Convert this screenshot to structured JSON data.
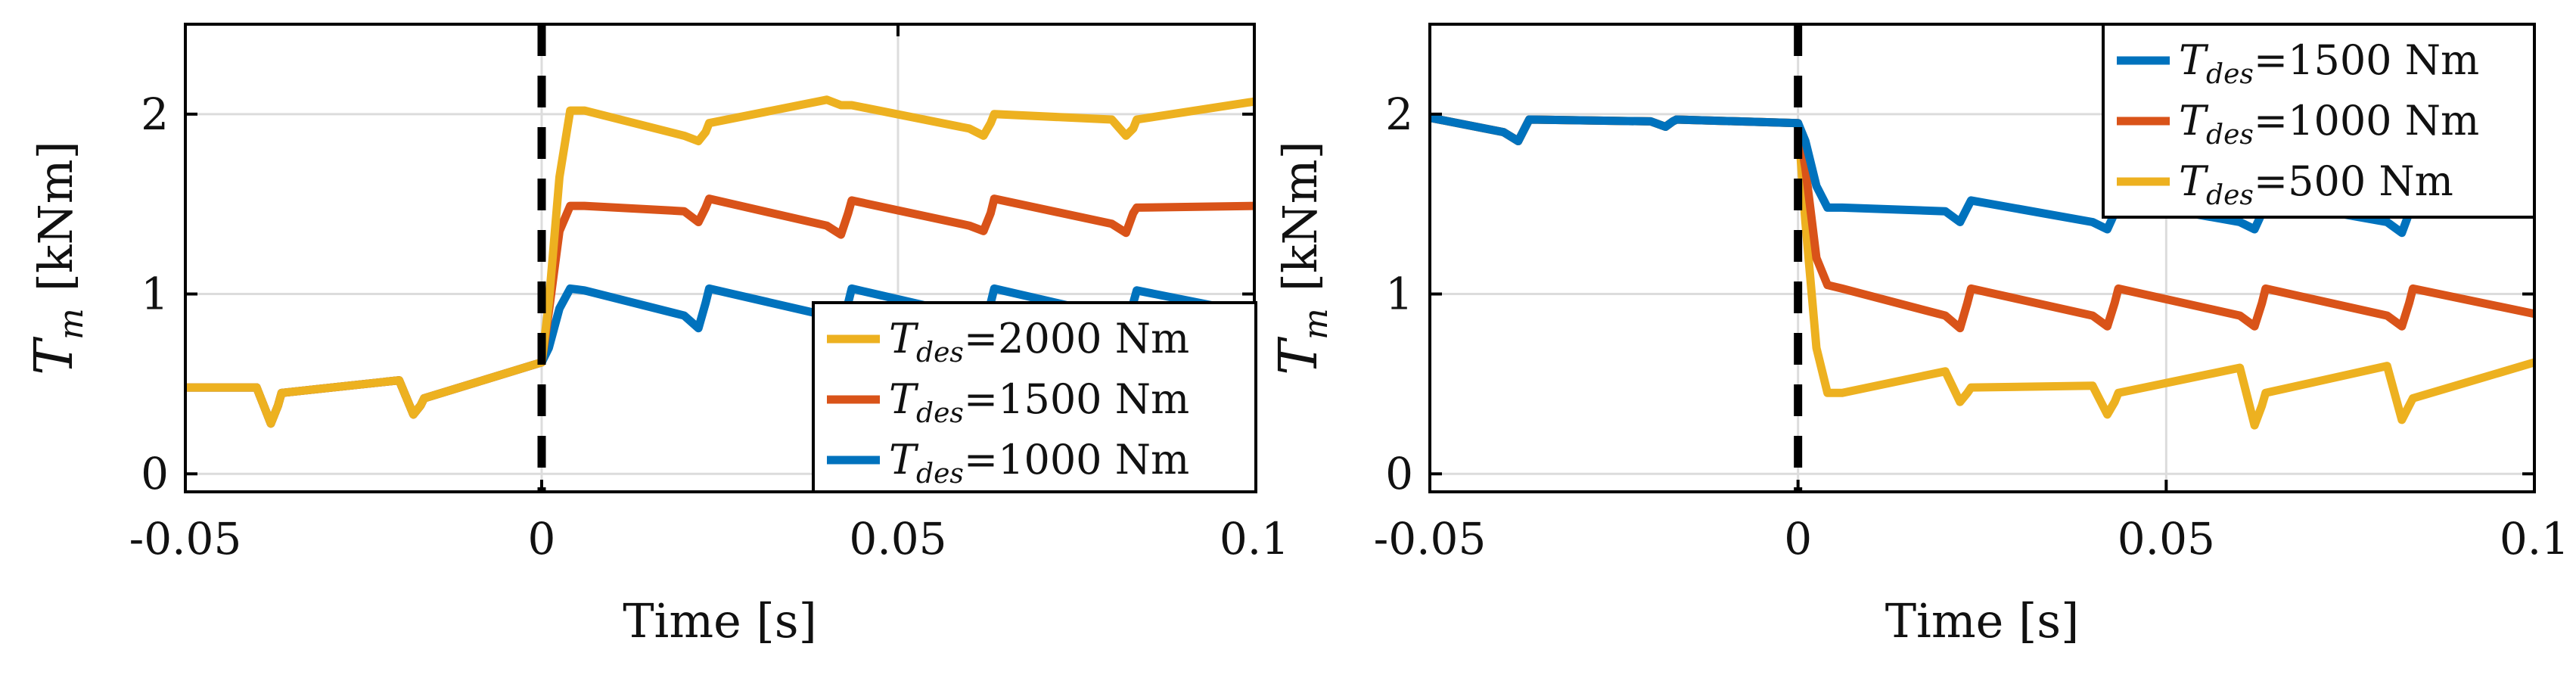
{
  "colors": {
    "blue": "#0072BD",
    "orange": "#D95319",
    "yellow": "#EDB120",
    "grid": "#dcdcdc",
    "axis": "#000000"
  },
  "chart_data": [
    {
      "type": "line",
      "xlabel": "Time [s]",
      "ylabel_symbol": "T",
      "ylabel_sub": "m",
      "ylabel_unit": "[kNm]",
      "xlim": [
        -0.05,
        0.1
      ],
      "ylim": [
        -0.1,
        2.5
      ],
      "xticks": [
        -0.05,
        0,
        0.05,
        0.1
      ],
      "xtick_labels": [
        "-0.05",
        "0",
        "0.05",
        "0.1"
      ],
      "yticks": [
        0,
        1,
        2
      ],
      "ytick_labels": [
        "0",
        "1",
        "2"
      ],
      "grid": true,
      "vline_x": 0,
      "legend_position": "bottom-right",
      "series": [
        {
          "name_symbol": "T",
          "name_sub": "des",
          "name_value": "=2000 Nm",
          "color": "yellow",
          "x": [
            -0.05,
            -0.04,
            -0.038,
            -0.037,
            -0.0365,
            -0.02,
            -0.018,
            -0.017,
            -0.0165,
            0,
            0.001,
            0.0025,
            0.004,
            0.006,
            0.02,
            0.022,
            0.023,
            0.0235,
            0.04,
            0.042,
            0.043,
            0.0435,
            0.06,
            0.062,
            0.063,
            0.0635,
            0.08,
            0.082,
            0.083,
            0.0835,
            0.1
          ],
          "y": [
            0.48,
            0.48,
            0.28,
            0.38,
            0.45,
            0.52,
            0.33,
            0.38,
            0.42,
            0.62,
            0.95,
            1.65,
            2.02,
            2.02,
            1.88,
            1.85,
            1.9,
            1.95,
            2.08,
            2.05,
            2.05,
            2.05,
            1.92,
            1.88,
            1.95,
            2.0,
            1.97,
            1.88,
            1.92,
            1.97,
            2.07
          ]
        },
        {
          "name_symbol": "T",
          "name_sub": "des",
          "name_value": "=1500 Nm",
          "color": "orange",
          "x": [
            -0.05,
            -0.04,
            -0.038,
            -0.037,
            -0.0365,
            -0.02,
            -0.018,
            -0.017,
            -0.0165,
            0,
            0.001,
            0.0025,
            0.004,
            0.006,
            0.02,
            0.022,
            0.023,
            0.0235,
            0.04,
            0.042,
            0.043,
            0.0435,
            0.06,
            0.062,
            0.063,
            0.0635,
            0.08,
            0.082,
            0.083,
            0.0835,
            0.1
          ],
          "y": [
            0.48,
            0.48,
            0.28,
            0.38,
            0.45,
            0.52,
            0.33,
            0.38,
            0.42,
            0.62,
            0.9,
            1.35,
            1.49,
            1.49,
            1.46,
            1.4,
            1.48,
            1.53,
            1.38,
            1.33,
            1.45,
            1.52,
            1.38,
            1.35,
            1.45,
            1.53,
            1.39,
            1.34,
            1.45,
            1.48,
            1.49
          ]
        },
        {
          "name_symbol": "T",
          "name_sub": "des",
          "name_value": "=1000 Nm",
          "color": "blue",
          "x": [
            -0.05,
            -0.04,
            -0.038,
            -0.037,
            -0.0365,
            -0.02,
            -0.018,
            -0.017,
            -0.0165,
            0,
            0.001,
            0.0025,
            0.004,
            0.006,
            0.02,
            0.022,
            0.023,
            0.0235,
            0.04,
            0.042,
            0.043,
            0.0435,
            0.06,
            0.062,
            0.063,
            0.0635,
            0.08,
            0.082,
            0.083,
            0.0835,
            0.1
          ],
          "y": [
            0.48,
            0.48,
            0.28,
            0.38,
            0.45,
            0.52,
            0.33,
            0.38,
            0.42,
            0.62,
            0.7,
            0.92,
            1.03,
            1.02,
            0.88,
            0.81,
            0.95,
            1.03,
            0.88,
            0.83,
            0.95,
            1.03,
            0.88,
            0.84,
            0.95,
            1.03,
            0.88,
            0.84,
            0.95,
            1.02,
            0.89
          ]
        }
      ]
    },
    {
      "type": "line",
      "xlabel": "Time [s]",
      "ylabel_symbol": "T",
      "ylabel_sub": "m",
      "ylabel_unit": "[kNm]",
      "xlim": [
        -0.05,
        0.1
      ],
      "ylim": [
        -0.1,
        2.5
      ],
      "xticks": [
        -0.05,
        0,
        0.05,
        0.1
      ],
      "xtick_labels": [
        "-0.05",
        "0",
        "0.05",
        "0.1"
      ],
      "yticks": [
        0,
        1,
        2
      ],
      "ytick_labels": [
        "0",
        "1",
        "2"
      ],
      "grid": true,
      "vline_x": 0,
      "legend_position": "top-right",
      "series": [
        {
          "name_symbol": "T",
          "name_sub": "des",
          "name_value": "=1500 Nm",
          "color": "blue",
          "x": [
            -0.05,
            -0.04,
            -0.038,
            -0.037,
            -0.0365,
            -0.02,
            -0.018,
            -0.017,
            -0.0165,
            0,
            0.001,
            0.0025,
            0.004,
            0.006,
            0.02,
            0.022,
            0.023,
            0.0235,
            0.04,
            0.042,
            0.043,
            0.0435,
            0.06,
            0.062,
            0.063,
            0.0635,
            0.08,
            0.082,
            0.083,
            0.0835,
            0.1
          ],
          "y": [
            1.98,
            1.9,
            1.85,
            1.93,
            1.97,
            1.96,
            1.93,
            1.96,
            1.97,
            1.95,
            1.85,
            1.6,
            1.48,
            1.48,
            1.46,
            1.4,
            1.48,
            1.52,
            1.4,
            1.36,
            1.45,
            1.52,
            1.4,
            1.36,
            1.45,
            1.52,
            1.4,
            1.34,
            1.45,
            1.49,
            1.48
          ]
        },
        {
          "name_symbol": "T",
          "name_sub": "des",
          "name_value": "=1000 Nm",
          "color": "orange",
          "x": [
            -0.05,
            -0.04,
            -0.038,
            -0.037,
            -0.0365,
            -0.02,
            -0.018,
            -0.017,
            -0.0165,
            0,
            0.001,
            0.0025,
            0.004,
            0.006,
            0.02,
            0.022,
            0.023,
            0.0235,
            0.04,
            0.042,
            0.043,
            0.0435,
            0.06,
            0.062,
            0.063,
            0.0635,
            0.08,
            0.082,
            0.083,
            0.0835,
            0.1
          ],
          "y": [
            1.98,
            1.9,
            1.85,
            1.93,
            1.97,
            1.96,
            1.93,
            1.96,
            1.97,
            1.95,
            1.7,
            1.2,
            1.05,
            1.03,
            0.88,
            0.81,
            0.95,
            1.03,
            0.88,
            0.82,
            0.95,
            1.03,
            0.88,
            0.82,
            0.95,
            1.03,
            0.88,
            0.82,
            0.95,
            1.03,
            0.89
          ]
        },
        {
          "name_symbol": "T",
          "name_sub": "des",
          "name_value": "=500 Nm",
          "color": "yellow",
          "x": [
            -0.05,
            -0.04,
            -0.038,
            -0.037,
            -0.0365,
            -0.02,
            -0.018,
            -0.017,
            -0.0165,
            0,
            0.001,
            0.0025,
            0.004,
            0.006,
            0.02,
            0.022,
            0.023,
            0.0235,
            0.04,
            0.042,
            0.043,
            0.0435,
            0.06,
            0.062,
            0.063,
            0.0635,
            0.08,
            0.082,
            0.083,
            0.0835,
            0.1
          ],
          "y": [
            1.98,
            1.9,
            1.85,
            1.93,
            1.97,
            1.96,
            1.93,
            1.96,
            1.97,
            1.95,
            1.4,
            0.7,
            0.45,
            0.45,
            0.57,
            0.4,
            0.45,
            0.48,
            0.49,
            0.33,
            0.4,
            0.45,
            0.59,
            0.27,
            0.38,
            0.45,
            0.6,
            0.3,
            0.38,
            0.42,
            0.62
          ]
        }
      ]
    }
  ]
}
